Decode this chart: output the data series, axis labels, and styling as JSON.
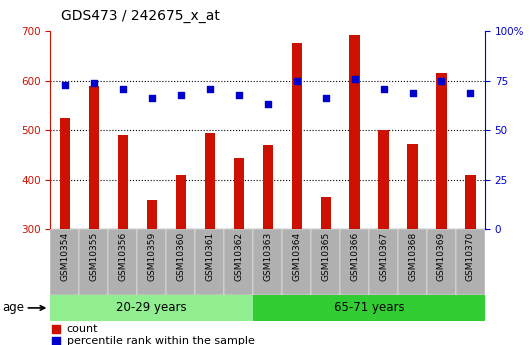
{
  "title": "GDS473 / 242675_x_at",
  "samples": [
    "GSM10354",
    "GSM10355",
    "GSM10356",
    "GSM10359",
    "GSM10360",
    "GSM10361",
    "GSM10362",
    "GSM10363",
    "GSM10364",
    "GSM10365",
    "GSM10366",
    "GSM10367",
    "GSM10368",
    "GSM10369",
    "GSM10370"
  ],
  "counts": [
    525,
    590,
    490,
    360,
    410,
    495,
    445,
    470,
    675,
    365,
    692,
    500,
    472,
    615,
    410
  ],
  "percentile_ranks": [
    73,
    74,
    71,
    66,
    68,
    71,
    68,
    63,
    75,
    66,
    76,
    71,
    69,
    75,
    69
  ],
  "ylim_left": [
    300,
    700
  ],
  "ylim_right": [
    0,
    100
  ],
  "yticks_left": [
    300,
    400,
    500,
    600,
    700
  ],
  "yticks_right": [
    0,
    25,
    50,
    75,
    100
  ],
  "right_tick_labels": [
    "0",
    "25",
    "50",
    "75",
    "100%"
  ],
  "group1_label": "20-29 years",
  "group2_label": "65-71 years",
  "group1_count": 7,
  "group2_count": 8,
  "age_label": "age",
  "bar_color": "#CC1100",
  "dot_color": "#0000CC",
  "group1_color": "#90EE90",
  "group2_color": "#32CD32",
  "tick_bg": "#B0B0B0",
  "count_label": "count",
  "percentile_label": "percentile rank within the sample",
  "bar_width": 0.35,
  "grid_lines": [
    400,
    500,
    600
  ]
}
